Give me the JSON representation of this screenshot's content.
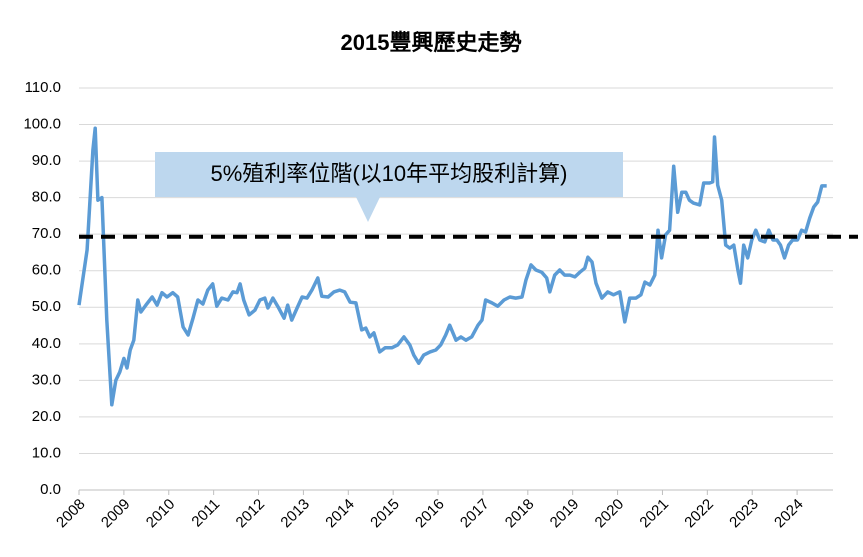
{
  "chart_data": {
    "type": "line",
    "title": "2015豐興歷史走勢",
    "annotation": "5%殖利率位階(以10年平均股利計算)",
    "reference_line": 69.3,
    "color": "#5b9bd5",
    "grid": true,
    "xlim": [
      2008,
      2024.8
    ],
    "ylim": [
      0,
      110
    ],
    "xticks": [
      2008,
      2009,
      2010,
      2011,
      2012,
      2013,
      2014,
      2015,
      2016,
      2017,
      2018,
      2019,
      2020,
      2021,
      2022,
      2023,
      2024
    ],
    "yticks": [
      {
        "value": 0,
        "label": "0.0"
      },
      {
        "value": 10,
        "label": "10.0"
      },
      {
        "value": 20,
        "label": "20.0"
      },
      {
        "value": 30,
        "label": "30.0"
      },
      {
        "value": 40,
        "label": "40.0"
      },
      {
        "value": 50,
        "label": "50.0"
      },
      {
        "value": 60,
        "label": "60.0"
      },
      {
        "value": 70,
        "label": "70.0"
      },
      {
        "value": 80,
        "label": "80.0"
      },
      {
        "value": 90,
        "label": "90.0"
      },
      {
        "value": 100,
        "label": "100.0"
      },
      {
        "value": 110,
        "label": "110.0"
      }
    ],
    "x": [
      2008.0,
      2008.18,
      2008.31,
      2008.36,
      2008.42,
      2008.51,
      2008.62,
      2008.73,
      2008.82,
      2008.91,
      2009.0,
      2009.07,
      2009.14,
      2009.22,
      2009.31,
      2009.38,
      2009.49,
      2009.63,
      2009.74,
      2009.85,
      2009.96,
      2010.09,
      2010.2,
      2010.32,
      2010.43,
      2010.54,
      2010.65,
      2010.76,
      2010.87,
      2010.98,
      2011.07,
      2011.18,
      2011.32,
      2011.43,
      2011.52,
      2011.59,
      2011.67,
      2011.79,
      2011.92,
      2012.03,
      2012.14,
      2012.21,
      2012.32,
      2012.45,
      2012.57,
      2012.65,
      2012.74,
      2012.86,
      2012.97,
      2013.08,
      2013.19,
      2013.32,
      2013.41,
      2013.55,
      2013.68,
      2013.81,
      2013.92,
      2014.04,
      2014.17,
      2014.3,
      2014.39,
      2014.48,
      2014.57,
      2014.7,
      2014.82,
      2014.97,
      2015.1,
      2015.24,
      2015.37,
      2015.46,
      2015.57,
      2015.68,
      2015.82,
      2015.95,
      2016.06,
      2016.17,
      2016.26,
      2016.4,
      2016.51,
      2016.62,
      2016.75,
      2016.89,
      2016.98,
      2017.06,
      2017.2,
      2017.33,
      2017.47,
      2017.6,
      2017.73,
      2017.87,
      2017.96,
      2018.07,
      2018.18,
      2018.31,
      2018.42,
      2018.49,
      2018.6,
      2018.71,
      2018.82,
      2018.94,
      2019.05,
      2019.16,
      2019.27,
      2019.34,
      2019.43,
      2019.52,
      2019.65,
      2019.78,
      2019.91,
      2020.05,
      2020.16,
      2020.27,
      2020.41,
      2020.52,
      2020.61,
      2020.72,
      2020.83,
      2020.9,
      2020.98,
      2021.07,
      2021.16,
      2021.25,
      2021.34,
      2021.43,
      2021.52,
      2021.6,
      2021.69,
      2021.83,
      2021.92,
      2022.05,
      2022.12,
      2022.16,
      2022.23,
      2022.32,
      2022.41,
      2022.5,
      2022.59,
      2022.68,
      2022.74,
      2022.81,
      2022.9,
      2022.99,
      2023.08,
      2023.17,
      2023.28,
      2023.37,
      2023.46,
      2023.55,
      2023.63,
      2023.72,
      2023.81,
      2023.9,
      2024.01,
      2024.1,
      2024.19,
      2024.28,
      2024.37,
      2024.46,
      2024.55,
      2024.66
    ],
    "values": [
      50.6,
      65.7,
      93,
      99,
      79.3,
      80,
      46.5,
      23.3,
      30,
      32.3,
      36,
      33.4,
      38.3,
      41,
      52,
      48.7,
      50.6,
      52.8,
      50.6,
      54,
      52.8,
      54,
      52.8,
      44.6,
      42.4,
      47,
      52,
      50.9,
      54.7,
      56.4,
      50.3,
      52.5,
      52,
      54.2,
      54,
      56.4,
      52,
      47.9,
      49.2,
      52,
      52.5,
      49.8,
      52.5,
      49.8,
      47,
      50.6,
      46.5,
      49.8,
      52.8,
      52.5,
      54.7,
      58,
      53,
      52.8,
      54.2,
      54.7,
      54.2,
      51.4,
      51.2,
      43.8,
      44.3,
      41.9,
      43,
      37.8,
      38.9,
      38.9,
      39.7,
      41.9,
      39.7,
      36.9,
      34.7,
      36.9,
      37.8,
      38.3,
      39.7,
      42.4,
      45.1,
      41,
      41.9,
      41,
      41.9,
      45.1,
      46.5,
      52,
      51.2,
      50.3,
      52,
      52.8,
      52.5,
      52.8,
      57.5,
      61.6,
      60.2,
      59.6,
      58,
      54.2,
      58.8,
      60.2,
      58.8,
      58.8,
      58.3,
      59.6,
      60.7,
      63.7,
      62.4,
      56.6,
      52.5,
      54.2,
      53.4,
      54.2,
      46,
      52.5,
      52.5,
      53.4,
      56.9,
      56.1,
      58.8,
      71.1,
      63.5,
      69.8,
      71.1,
      88.6,
      76,
      81.5,
      81.5,
      79.3,
      78.5,
      78,
      84,
      84,
      84.3,
      96.6,
      83.4,
      79.3,
      67,
      66.2,
      67,
      60.2,
      56.6,
      67,
      63.5,
      68.4,
      71.1,
      68.4,
      67.9,
      71.1,
      68.4,
      68.4,
      67,
      63.5,
      67,
      68.4,
      68.4,
      71.1,
      70.6,
      74.4,
      77.4,
      78.8,
      83.2,
      83.2
    ]
  }
}
